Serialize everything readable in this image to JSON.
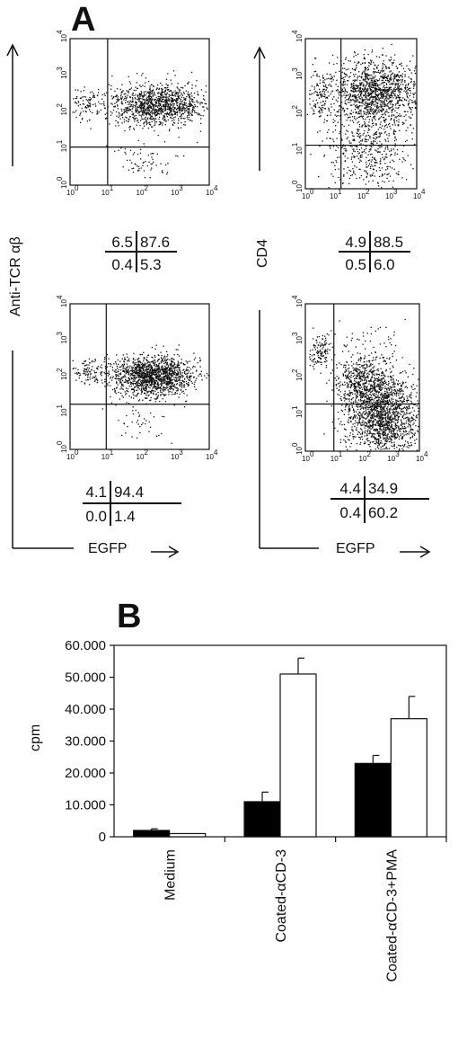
{
  "panel_a": {
    "letter": "A",
    "ylabel_left": "Anti-TCR αβ",
    "ylabel_right": "CD4",
    "xlabel": "EGFP",
    "log_ticks": [
      {
        "base": "10",
        "exp": "0"
      },
      {
        "base": "10",
        "exp": "1"
      },
      {
        "base": "10",
        "exp": "2"
      },
      {
        "base": "10",
        "exp": "3"
      },
      {
        "base": "10",
        "exp": "4"
      }
    ],
    "plots": [
      {
        "quadrants": {
          "ul": "6.5",
          "ur": "87.6",
          "ll": "0.4",
          "lr": "5.3"
        }
      },
      {
        "quadrants": {
          "ul": "4.9",
          "ur": "88.5",
          "ll": "0.5",
          "lr": "6.0"
        }
      },
      {
        "quadrants": {
          "ul": "4.1",
          "ur": "94.4",
          "ll": "0.0",
          "lr": "1.4"
        }
      },
      {
        "quadrants": {
          "ul": "4.4",
          "ur": "34.9",
          "ll": "0.4",
          "lr": "60.2"
        }
      }
    ]
  },
  "panel_b": {
    "letter": "B"
  },
  "chart_data": [
    {
      "type": "scatter",
      "xlabel": "EGFP",
      "ylabel": "Anti-TCR αβ",
      "x_scale": "log",
      "y_scale": "log",
      "xlim": [
        1,
        10000
      ],
      "ylim": [
        1,
        10000
      ],
      "quadrant_percentages": {
        "upper_left": 6.5,
        "upper_right": 87.6,
        "lower_left": 0.4,
        "lower_right": 5.3
      }
    },
    {
      "type": "scatter",
      "xlabel": "EGFP",
      "ylabel": "CD4",
      "x_scale": "log",
      "y_scale": "log",
      "xlim": [
        1,
        10000
      ],
      "ylim": [
        1,
        10000
      ],
      "quadrant_percentages": {
        "upper_left": 4.9,
        "upper_right": 88.5,
        "lower_left": 0.5,
        "lower_right": 6.0
      }
    },
    {
      "type": "scatter",
      "xlabel": "EGFP",
      "ylabel": "Anti-TCR αβ",
      "x_scale": "log",
      "y_scale": "log",
      "xlim": [
        1,
        10000
      ],
      "ylim": [
        1,
        10000
      ],
      "quadrant_percentages": {
        "upper_left": 4.1,
        "upper_right": 94.4,
        "lower_left": 0.0,
        "lower_right": 1.4
      }
    },
    {
      "type": "scatter",
      "xlabel": "EGFP",
      "ylabel": "CD4",
      "x_scale": "log",
      "y_scale": "log",
      "xlim": [
        1,
        10000
      ],
      "ylim": [
        1,
        10000
      ],
      "quadrant_percentages": {
        "upper_left": 4.4,
        "upper_right": 34.9,
        "lower_left": 0.4,
        "lower_right": 60.2
      }
    },
    {
      "type": "bar",
      "ylabel": "cpm",
      "categories": [
        "Medium",
        "Coated-αCD-3",
        "Coated-αCD-3+PMA"
      ],
      "ylim": [
        0,
        60000
      ],
      "yticks": [
        "0",
        "10.000",
        "20.000",
        "30.000",
        "40.000",
        "50.000",
        "60.000"
      ],
      "grid": false,
      "series": [
        {
          "color": "#000000",
          "values": [
            2000,
            11000,
            23000
          ],
          "errors": [
            500,
            3000,
            2500
          ]
        },
        {
          "color": "#ffffff",
          "values": [
            1000,
            51000,
            37000
          ],
          "errors": [
            0,
            5000,
            7000
          ]
        }
      ]
    }
  ]
}
